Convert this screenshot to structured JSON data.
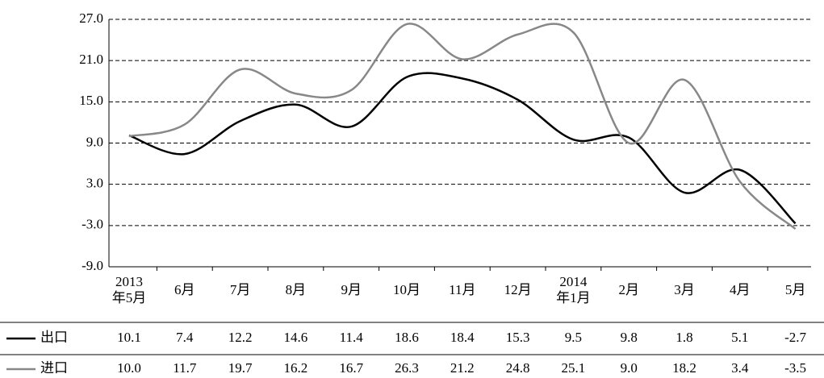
{
  "chart_data": {
    "type": "line",
    "categories": [
      "2013\n年5月",
      "6月",
      "7月",
      "8月",
      "9月",
      "10月",
      "11月",
      "12月",
      "2014\n年1月",
      "2月",
      "3月",
      "4月",
      "5月"
    ],
    "series": [
      {
        "name": "出口",
        "color": "#000000",
        "values": [
          10.1,
          7.4,
          12.2,
          14.6,
          11.4,
          18.6,
          18.4,
          15.3,
          9.5,
          9.8,
          1.8,
          5.1,
          -2.7
        ],
        "value_labels": [
          "10.1",
          "7.4",
          "12.2",
          "14.6",
          "11.4",
          "18.6",
          "18.4",
          "15.3",
          "9.5",
          "9.8",
          "1.8",
          "5.1",
          "-2.7"
        ]
      },
      {
        "name": "进口",
        "color": "#888888",
        "values": [
          10.0,
          11.7,
          19.7,
          16.2,
          16.7,
          26.3,
          21.2,
          24.8,
          25.1,
          9.0,
          18.2,
          3.4,
          -3.5
        ],
        "value_labels": [
          "10.0",
          "11.7",
          "19.7",
          "16.2",
          "16.7",
          "26.3",
          "21.2",
          "24.8",
          "25.1",
          "9.0",
          "18.2",
          "3.4",
          "-3.5"
        ]
      }
    ],
    "ylim": [
      -9,
      27
    ],
    "yticks": [
      {
        "value": 27,
        "label": "27.0"
      },
      {
        "value": 21,
        "label": "21.0"
      },
      {
        "value": 15,
        "label": "15.0"
      },
      {
        "value": 9,
        "label": "9.0"
      },
      {
        "value": 3,
        "label": "3.0"
      },
      {
        "value": -3,
        "label": "-3.0"
      },
      {
        "value": -9,
        "label": "-9.0"
      }
    ],
    "grid": true
  }
}
